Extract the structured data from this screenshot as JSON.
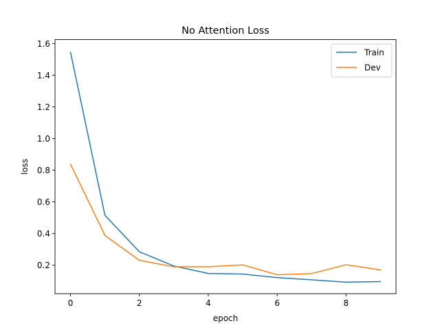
{
  "chart_data": {
    "type": "line",
    "title": "No Attention Loss",
    "xlabel": "epoch",
    "ylabel": "loss",
    "xlim": [
      -0.45,
      9.45
    ],
    "ylim": [
      0.02,
      1.625
    ],
    "xticks": [
      0,
      2,
      4,
      6,
      8
    ],
    "xtick_labels": [
      "0",
      "2",
      "4",
      "6",
      "8"
    ],
    "yticks": [
      0.2,
      0.4,
      0.6,
      0.8,
      1.0,
      1.2,
      1.4,
      1.6
    ],
    "ytick_labels": [
      "0.2",
      "0.4",
      "0.6",
      "0.8",
      "1.0",
      "1.2",
      "1.4",
      "1.6"
    ],
    "grid": false,
    "legend_position": "top-right",
    "x": [
      0,
      1,
      2,
      3,
      4,
      5,
      6,
      7,
      8,
      9
    ],
    "series": [
      {
        "name": "Train",
        "color": "#1f77b4",
        "values": [
          1.545,
          0.515,
          0.285,
          0.195,
          0.148,
          0.144,
          0.122,
          0.108,
          0.093,
          0.097
        ]
      },
      {
        "name": "Dev",
        "color": "#ff7f0e",
        "values": [
          0.838,
          0.388,
          0.231,
          0.19,
          0.19,
          0.202,
          0.14,
          0.147,
          0.203,
          0.17
        ]
      }
    ]
  }
}
